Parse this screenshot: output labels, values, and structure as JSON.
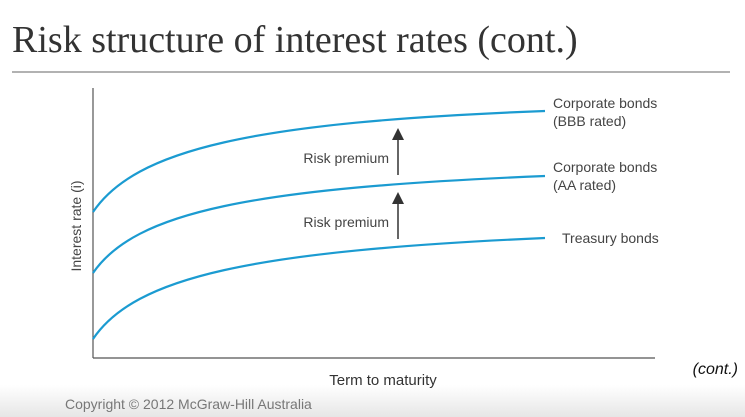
{
  "header": {
    "title": "Risk structure of interest rates (cont.)"
  },
  "diagram": {
    "y_axis_label": "Interest rate (i)",
    "x_axis_label": "Term to maturity",
    "curves": [
      {
        "label_lines": [
          "Corporate bonds",
          "(BBB rated)"
        ]
      },
      {
        "label_lines": [
          "Corporate bonds",
          "(AA rated)"
        ]
      },
      {
        "label_lines": [
          "Treasury bonds"
        ]
      }
    ],
    "premiums": [
      "Risk premium",
      "Risk premium"
    ]
  },
  "footer": {
    "note": "(cont.)",
    "copyright": "Copyright © 2012 McGraw-Hill Australia"
  }
}
